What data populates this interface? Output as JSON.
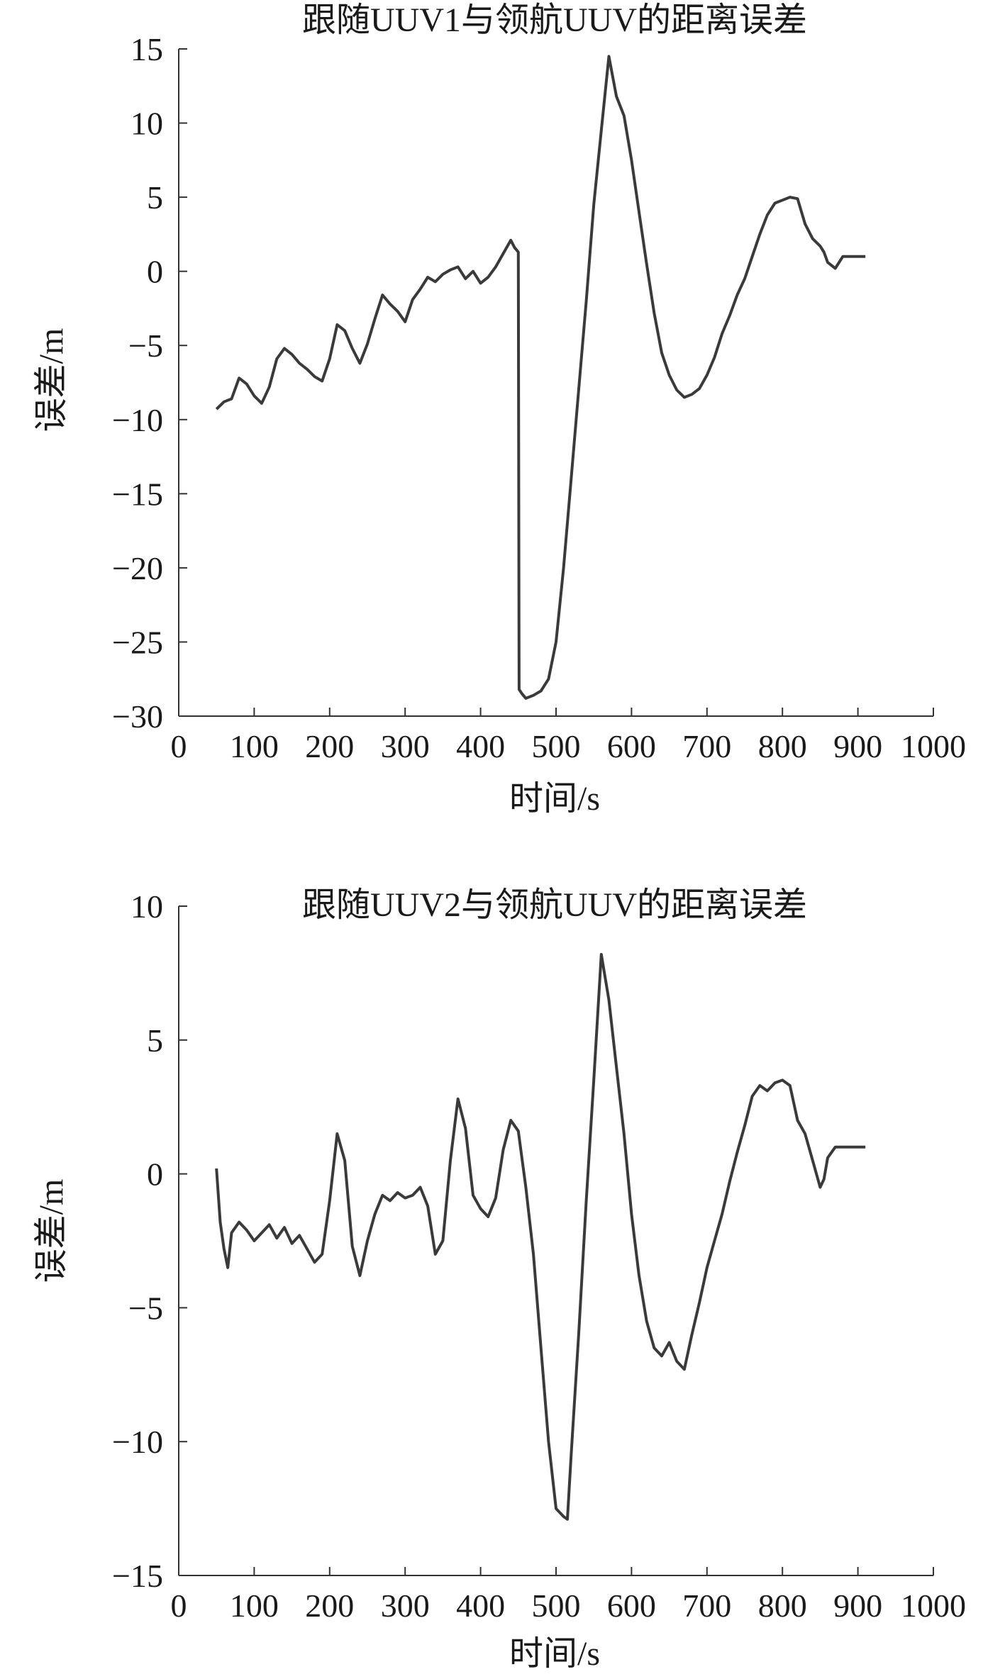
{
  "figure": {
    "colors": {
      "line": "#3a3a3a",
      "axis": "#333333",
      "text": "#1a1a1a",
      "background": "#ffffff"
    }
  },
  "chart_data": [
    {
      "type": "line",
      "title": "跟随UUV1与领航UUV的距离误差",
      "xlabel": "时间/s",
      "ylabel": "误差/m",
      "xlim": [
        0,
        1000
      ],
      "ylim": [
        -30,
        15
      ],
      "xticks": [
        0,
        100,
        200,
        300,
        400,
        500,
        600,
        700,
        800,
        900,
        1000
      ],
      "yticks": [
        15,
        10,
        5,
        0,
        -5,
        -10,
        -15,
        -20,
        -25,
        -30
      ],
      "xtick_labels": [
        "0",
        "100",
        "200",
        "300",
        "400",
        "500",
        "600",
        "700",
        "800",
        "900",
        "1000"
      ],
      "ytick_labels": [
        "15",
        "10",
        "5",
        "0",
        "−5",
        "−10",
        "−15",
        "−20",
        "−25",
        "−30"
      ],
      "grid": false,
      "series": [
        {
          "x": [
            50,
            60,
            70,
            80,
            90,
            100,
            110,
            120,
            130,
            140,
            150,
            160,
            170,
            180,
            190,
            200,
            210,
            220,
            230,
            240,
            250,
            260,
            270,
            280,
            290,
            300,
            310,
            320,
            330,
            340,
            350,
            360,
            370,
            380,
            390,
            400,
            410,
            420,
            430,
            440,
            445,
            450,
            451,
            455,
            460,
            470,
            480,
            490,
            500,
            510,
            520,
            530,
            540,
            550,
            560,
            570,
            580,
            590,
            600,
            610,
            620,
            630,
            640,
            650,
            660,
            670,
            680,
            690,
            700,
            710,
            720,
            730,
            740,
            750,
            760,
            770,
            780,
            790,
            800,
            810,
            820,
            830,
            840,
            850,
            855,
            860,
            870,
            880,
            890,
            900,
            910
          ],
          "values": [
            -9.3,
            -8.8,
            -8.6,
            -7.2,
            -7.6,
            -8.4,
            -8.9,
            -7.8,
            -5.9,
            -5.2,
            -5.6,
            -6.2,
            -6.6,
            -7.1,
            -7.4,
            -5.9,
            -3.6,
            -4.0,
            -5.2,
            -6.2,
            -4.9,
            -3.2,
            -1.6,
            -2.2,
            -2.7,
            -3.4,
            -1.9,
            -1.2,
            -0.4,
            -0.7,
            -0.2,
            0.1,
            0.3,
            -0.5,
            0.0,
            -0.8,
            -0.4,
            0.3,
            1.2,
            2.1,
            1.6,
            1.3,
            -28.2,
            -28.5,
            -28.8,
            -28.6,
            -28.3,
            -27.5,
            -25.0,
            -20.0,
            -14.0,
            -8.0,
            -2.0,
            4.5,
            9.5,
            14.5,
            11.8,
            10.5,
            7.5,
            4.0,
            0.5,
            -2.8,
            -5.5,
            -7.0,
            -8.0,
            -8.5,
            -8.3,
            -7.9,
            -7.0,
            -5.8,
            -4.2,
            -3.0,
            -1.6,
            -0.5,
            1.0,
            2.5,
            3.8,
            4.6,
            4.8,
            5.0,
            4.9,
            3.2,
            2.2,
            1.7,
            1.3,
            0.6,
            0.2,
            1.0,
            1.0,
            1.0,
            1.0
          ]
        }
      ]
    },
    {
      "type": "line",
      "title": "跟随UUV2与领航UUV的距离误差",
      "xlabel": "时间/s",
      "ylabel": "误差/m",
      "xlim": [
        0,
        1000
      ],
      "ylim": [
        -15,
        10
      ],
      "xticks": [
        0,
        100,
        200,
        300,
        400,
        500,
        600,
        700,
        800,
        900,
        1000
      ],
      "yticks": [
        10,
        5,
        0,
        -5,
        -10,
        -15
      ],
      "xtick_labels": [
        "0",
        "100",
        "200",
        "300",
        "400",
        "500",
        "600",
        "700",
        "800",
        "900",
        "1000"
      ],
      "ytick_labels": [
        "10",
        "5",
        "0",
        "−5",
        "−10",
        "−15"
      ],
      "grid": false,
      "series": [
        {
          "x": [
            50,
            55,
            60,
            65,
            70,
            80,
            90,
            100,
            110,
            120,
            130,
            140,
            150,
            160,
            170,
            180,
            190,
            200,
            210,
            220,
            230,
            240,
            250,
            260,
            270,
            280,
            290,
            300,
            310,
            320,
            330,
            340,
            350,
            360,
            370,
            380,
            390,
            400,
            410,
            420,
            430,
            440,
            450,
            460,
            470,
            480,
            490,
            500,
            510,
            515,
            520,
            530,
            540,
            550,
            560,
            570,
            580,
            590,
            600,
            610,
            620,
            630,
            640,
            650,
            660,
            670,
            680,
            690,
            700,
            710,
            720,
            730,
            740,
            750,
            760,
            770,
            780,
            790,
            800,
            810,
            820,
            830,
            840,
            850,
            855,
            860,
            870,
            880,
            890,
            900,
            910
          ],
          "values": [
            0.2,
            -1.8,
            -2.8,
            -3.5,
            -2.2,
            -1.8,
            -2.1,
            -2.5,
            -2.2,
            -1.9,
            -2.4,
            -2.0,
            -2.6,
            -2.3,
            -2.8,
            -3.3,
            -3.0,
            -1.0,
            1.5,
            0.5,
            -2.7,
            -3.8,
            -2.5,
            -1.5,
            -0.8,
            -1.0,
            -0.7,
            -0.9,
            -0.8,
            -0.5,
            -1.2,
            -3.0,
            -2.5,
            0.5,
            2.8,
            1.7,
            -0.8,
            -1.3,
            -1.6,
            -0.9,
            0.9,
            2.0,
            1.6,
            -0.5,
            -3.0,
            -6.5,
            -10.0,
            -12.5,
            -12.8,
            -12.9,
            -10.5,
            -6.0,
            -1.0,
            3.5,
            8.2,
            6.5,
            4.0,
            1.5,
            -1.5,
            -3.8,
            -5.5,
            -6.5,
            -6.8,
            -6.3,
            -7.0,
            -7.3,
            -6.0,
            -4.8,
            -3.5,
            -2.5,
            -1.5,
            -0.3,
            0.8,
            1.8,
            2.9,
            3.3,
            3.1,
            3.4,
            3.5,
            3.3,
            2.0,
            1.5,
            0.5,
            -0.5,
            -0.2,
            0.6,
            1.0,
            1.0,
            1.0,
            1.0,
            1.0
          ]
        }
      ]
    }
  ]
}
